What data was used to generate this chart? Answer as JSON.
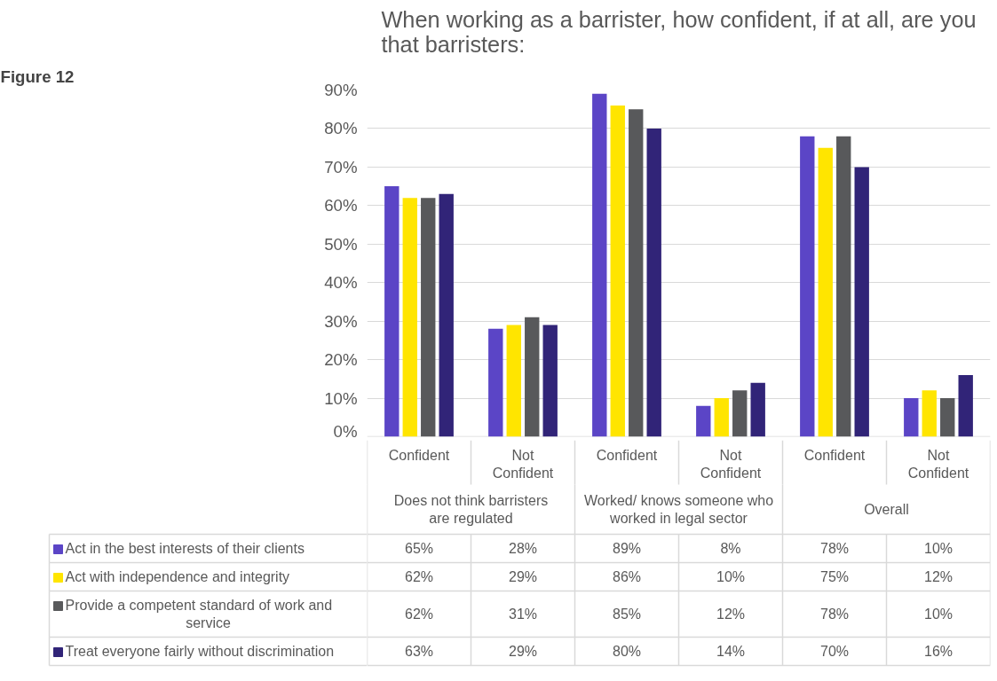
{
  "chart_data": {
    "type": "bar",
    "title": "When working as a barrister, how confident, if at all, are you that barristers:",
    "categories": [
      "Confident",
      "Not Confident",
      "Confident",
      "Not Confident",
      "Confident",
      "Not Confident"
    ],
    "annotations": [
      "Figure 12",
      "Does not think barristers are regulated",
      "Worked/ knows someone who worked in legal sector",
      "Overall"
    ],
    "series": [
      {
        "name": "Act in the best interests of their clients",
        "color": "#5b45c6",
        "values": [
          65,
          28,
          89,
          8,
          78,
          10
        ],
        "value_labels": [
          "65%",
          "28%",
          "89%",
          "8%",
          "78%",
          "10%"
        ]
      },
      {
        "name": "Act with independence and integrity",
        "color": "#ffe500",
        "values": [
          62,
          29,
          86,
          10,
          75,
          12
        ],
        "value_labels": [
          "62%",
          "29%",
          "86%",
          "10%",
          "75%",
          "12%"
        ]
      },
      {
        "name": "Provide a competent standard of work and service",
        "color": "#58595b",
        "values": [
          62,
          31,
          85,
          12,
          78,
          10
        ],
        "value_labels": [
          "62%",
          "31%",
          "85%",
          "12%",
          "78%",
          "10%"
        ]
      },
      {
        "name": "Treat everyone fairly without discrimination",
        "color": "#312478",
        "values": [
          63,
          29,
          80,
          14,
          70,
          16
        ],
        "value_labels": [
          "63%",
          "29%",
          "80%",
          "14%",
          "70%",
          "16%"
        ]
      }
    ],
    "ylim": [
      0,
      90
    ],
    "yticks": [
      {
        "value": 0,
        "label": "0%"
      },
      {
        "value": 10,
        "label": "10%"
      },
      {
        "value": 20,
        "label": "20%"
      },
      {
        "value": 30,
        "label": "30%"
      },
      {
        "value": 40,
        "label": "40%"
      },
      {
        "value": 50,
        "label": "50%"
      },
      {
        "value": 60,
        "label": "60%"
      },
      {
        "value": 70,
        "label": "70%"
      },
      {
        "value": 80,
        "label": "80%"
      },
      {
        "value": 90,
        "label": "90%"
      }
    ],
    "grid": "y",
    "legend": "bottom",
    "tick_labels": "y"
  }
}
